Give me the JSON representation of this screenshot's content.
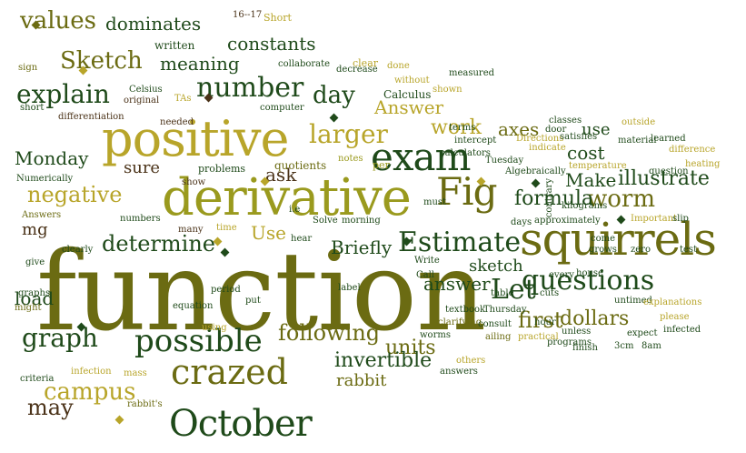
{
  "palette": {
    "dark_green": "#1f4a1a",
    "olive": "#6b6b12",
    "yellow_olive": "#9a9a1e",
    "mustard": "#b8a52a",
    "brown": "#4a3218"
  },
  "words": [
    "function",
    "derivative",
    "positive",
    "squirrels",
    "exam",
    "October",
    "crazed",
    "possible",
    "Fig",
    "number",
    "explain",
    "graph",
    "Estimate",
    "questions",
    "campus",
    "may",
    "negative",
    "determine",
    "worm",
    "illustrate",
    "values",
    "dominates",
    "constants",
    "Sketch",
    "meaning",
    "day",
    "larger",
    "Answer",
    "Let",
    "work",
    "cost",
    "formula",
    "dollars",
    "first",
    "answer",
    "sketch",
    "following",
    "units",
    "invertible",
    "rabbit",
    "Briefly",
    "Use",
    "Make",
    "use",
    "axes",
    "ask",
    "sure",
    "Monday",
    "load",
    "mg",
    "written",
    "16--17",
    "Short",
    "TAs",
    "Celsius",
    "original",
    "needed",
    "computer",
    "measured",
    "Calculus",
    "shown",
    "without",
    "clear",
    "done",
    "decrease",
    "collaborate",
    "sign",
    "short",
    "differentiation",
    "problems",
    "quotients",
    "notes",
    "per",
    "must",
    "terms",
    "intercept",
    "calculators",
    "Directions",
    "door",
    "classes",
    "satisfies",
    "outside",
    "learned",
    "difference",
    "heating",
    "question",
    "temperature",
    "indicate",
    "material",
    "Tuesday",
    "Algebraically",
    "kilograms",
    "approximately",
    "Important",
    "slip",
    "days",
    "Numerically",
    "show",
    "Answers",
    "numbers",
    "many",
    "time",
    "i.e",
    "Solve",
    "morning",
    "hear",
    "clearly",
    "give",
    "graphs",
    "might",
    "period",
    "put",
    "label",
    "Write",
    "Call",
    "textbook",
    "clarifying",
    "Thursday",
    "table",
    "cuts",
    "come",
    "grows",
    "zero",
    "test",
    "every",
    "house",
    "untimed",
    "explanations",
    "please",
    "infected",
    "expect",
    "equation",
    "using",
    "hour",
    "consult",
    "ailing",
    "practical",
    "unless",
    "programs",
    "finish",
    "3cm",
    "8am",
    "worms",
    "others",
    "answers",
    "criteria",
    "infection",
    "mass",
    "rabbit's",
    "contrary"
  ]
}
